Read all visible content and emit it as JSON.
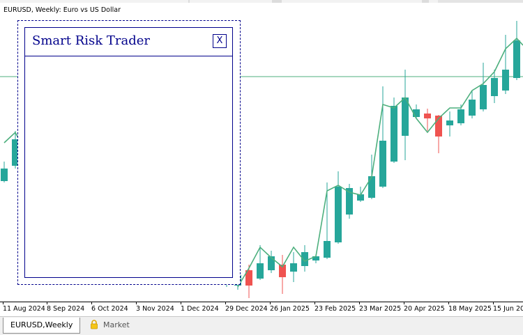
{
  "chart": {
    "title": "EURUSD, Weekly:  Euro vs US Dollar",
    "colors": {
      "bull": "#26a69a",
      "bear": "#ef5350",
      "line": "#4caf7d",
      "hline": "#4caf7d"
    },
    "x_labels": [
      "11 Aug 2024",
      "8 Sep 2024",
      "6 Oct 2024",
      "3 Nov 2024",
      "1 Dec 2024",
      "29 Dec 2024",
      "26 Jan 2025",
      "23 Feb 2025",
      "23 Mar 2025",
      "20 Apr 2025",
      "18 May 2025",
      "15 Jun 2025"
    ]
  },
  "panel": {
    "title": "Smart Risk Trader",
    "close_label": "X"
  },
  "tabs": {
    "active_label": "EURUSD,Weekly",
    "market_label": "Market",
    "lock_icon": "lock-icon"
  }
}
